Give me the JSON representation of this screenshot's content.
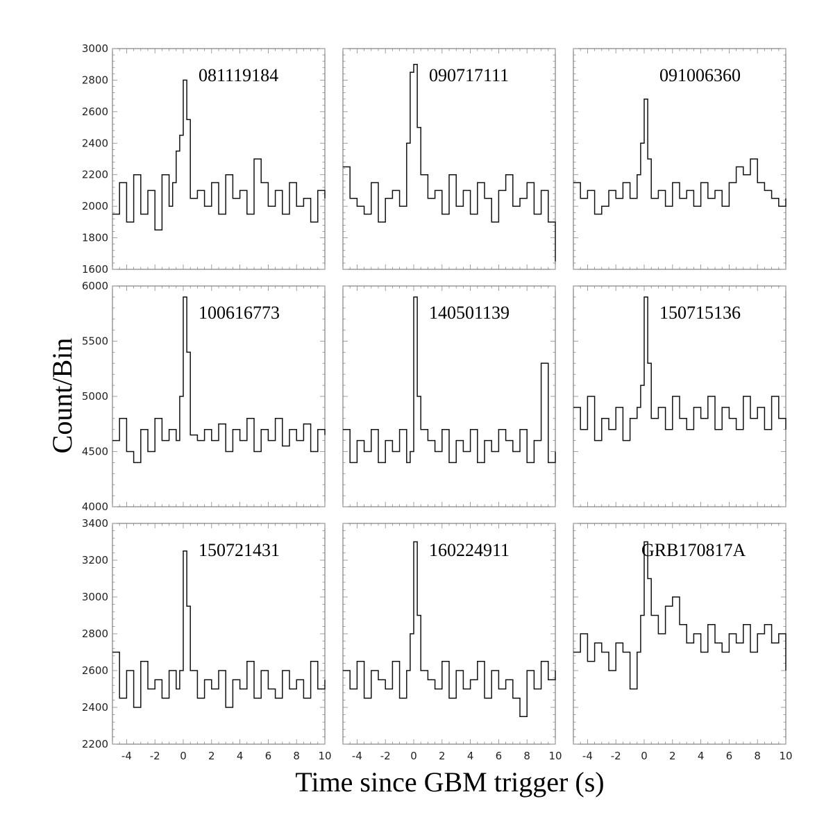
{
  "figure": {
    "xlabel": "Time since GBM trigger (s)",
    "ylabel": "Count/Bin"
  },
  "chart_data": [
    {
      "type": "line",
      "title": "081119184",
      "xlim": [
        -5,
        10
      ],
      "ylim": [
        1600,
        3000
      ],
      "yticks": [
        1600,
        1800,
        2000,
        2200,
        2400,
        2600,
        2800,
        3000
      ],
      "xticks": [],
      "series": [
        {
          "x": [
            -5,
            -4.5,
            -4,
            -3.5,
            -3,
            -2.5,
            -2,
            -1.5,
            -1,
            -0.75,
            -0.5,
            -0.25,
            0,
            0.25,
            0.5,
            1,
            1.5,
            2,
            2.5,
            3,
            3.5,
            4,
            4.5,
            5,
            5.5,
            6,
            6.5,
            7,
            7.5,
            8,
            8.5,
            9,
            9.5,
            10
          ],
          "y": [
            1950,
            2150,
            1900,
            2200,
            1950,
            2100,
            1850,
            2200,
            2000,
            2150,
            2350,
            2450,
            2800,
            2550,
            2050,
            2100,
            2000,
            2150,
            1950,
            2200,
            2050,
            2100,
            1950,
            2300,
            2150,
            2000,
            2100,
            1950,
            2150,
            2000,
            2050,
            1900,
            2100,
            2050
          ]
        }
      ]
    },
    {
      "type": "line",
      "title": "090717111",
      "xlim": [
        -5,
        10
      ],
      "ylim": [
        1600,
        3000
      ],
      "yticks": [],
      "xticks": [],
      "series": [
        {
          "x": [
            -5,
            -4.5,
            -4,
            -3.5,
            -3,
            -2.5,
            -2,
            -1.5,
            -1,
            -0.5,
            -0.25,
            0,
            0.25,
            0.5,
            1,
            1.5,
            2,
            2.5,
            3,
            3.5,
            4,
            4.5,
            5,
            5.5,
            6,
            6.5,
            7,
            7.5,
            8,
            8.5,
            9,
            9.5,
            10
          ],
          "y": [
            2250,
            2050,
            2000,
            1950,
            2150,
            1900,
            2050,
            2100,
            2000,
            2400,
            2850,
            2900,
            2500,
            2200,
            2050,
            2100,
            1950,
            2200,
            2000,
            2100,
            1950,
            2150,
            2050,
            1900,
            2100,
            2200,
            2000,
            2050,
            2150,
            1950,
            2100,
            1900,
            1650
          ]
        }
      ]
    },
    {
      "type": "line",
      "title": "091006360",
      "xlim": [
        -5,
        10
      ],
      "ylim": [
        1600,
        3000
      ],
      "yticks": [],
      "xticks": [],
      "series": [
        {
          "x": [
            -5,
            -4.5,
            -4,
            -3.5,
            -3,
            -2.5,
            -2,
            -1.5,
            -1,
            -0.5,
            -0.25,
            0,
            0.25,
            0.5,
            1,
            1.5,
            2,
            2.5,
            3,
            3.5,
            4,
            4.5,
            5,
            5.5,
            6,
            6.5,
            7,
            7.5,
            8,
            8.5,
            9,
            9.5,
            10
          ],
          "y": [
            2150,
            2050,
            2100,
            1950,
            2000,
            2100,
            2050,
            2150,
            2050,
            2200,
            2400,
            2680,
            2300,
            2050,
            2100,
            2000,
            2150,
            2050,
            2100,
            2000,
            2150,
            2050,
            2100,
            2000,
            2150,
            2250,
            2200,
            2300,
            2150,
            2100,
            2050,
            2000,
            2050
          ]
        }
      ]
    },
    {
      "type": "line",
      "title": "100616773",
      "xlim": [
        -5,
        10
      ],
      "ylim": [
        4000,
        6000
      ],
      "yticks": [
        4000,
        4500,
        5000,
        5500,
        6000
      ],
      "xticks": [],
      "series": [
        {
          "x": [
            -5,
            -4.5,
            -4,
            -3.5,
            -3,
            -2.5,
            -2,
            -1.5,
            -1,
            -0.5,
            -0.25,
            0,
            0.25,
            0.5,
            1,
            1.5,
            2,
            2.5,
            3,
            3.5,
            4,
            4.5,
            5,
            5.5,
            6,
            6.5,
            7,
            7.5,
            8,
            8.5,
            9,
            9.5,
            10
          ],
          "y": [
            4600,
            4800,
            4500,
            4400,
            4700,
            4500,
            4800,
            4600,
            4700,
            4600,
            5000,
            5900,
            5400,
            4650,
            4600,
            4700,
            4600,
            4750,
            4500,
            4700,
            4600,
            4800,
            4500,
            4700,
            4600,
            4800,
            4550,
            4700,
            4600,
            4750,
            4500,
            4700,
            4650
          ]
        }
      ]
    },
    {
      "type": "line",
      "title": "140501139",
      "xlim": [
        -5,
        10
      ],
      "ylim": [
        4000,
        6000
      ],
      "yticks": [],
      "xticks": [],
      "series": [
        {
          "x": [
            -5,
            -4.5,
            -4,
            -3.5,
            -3,
            -2.5,
            -2,
            -1.5,
            -1,
            -0.5,
            -0.25,
            0,
            0.25,
            0.5,
            1,
            1.5,
            2,
            2.5,
            3,
            3.5,
            4,
            4.5,
            5,
            5.5,
            6,
            6.5,
            7,
            7.5,
            8,
            8.5,
            9,
            9.5,
            10
          ],
          "y": [
            4700,
            4400,
            4600,
            4500,
            4700,
            4400,
            4600,
            4500,
            4700,
            4400,
            4500,
            5900,
            5000,
            4700,
            4600,
            4500,
            4700,
            4400,
            4600,
            4500,
            4700,
            4400,
            4600,
            4500,
            4700,
            4600,
            4500,
            4700,
            4400,
            4600,
            5300,
            4400,
            4500
          ]
        }
      ]
    },
    {
      "type": "line",
      "title": "150715136",
      "xlim": [
        -5,
        10
      ],
      "ylim": [
        4000,
        6000
      ],
      "yticks": [],
      "xticks": [],
      "series": [
        {
          "x": [
            -5,
            -4.5,
            -4,
            -3.5,
            -3,
            -2.5,
            -2,
            -1.5,
            -1,
            -0.5,
            -0.25,
            0,
            0.25,
            0.5,
            1,
            1.5,
            2,
            2.5,
            3,
            3.5,
            4,
            4.5,
            5,
            5.5,
            6,
            6.5,
            7,
            7.5,
            8,
            8.5,
            9,
            9.5,
            10
          ],
          "y": [
            4900,
            4700,
            5000,
            4600,
            4800,
            4700,
            4900,
            4600,
            4800,
            4900,
            5100,
            5900,
            5300,
            4800,
            4900,
            4700,
            5000,
            4800,
            4700,
            4900,
            4800,
            5000,
            4700,
            4900,
            4800,
            4700,
            5000,
            4800,
            4900,
            4700,
            5000,
            4800,
            4700
          ]
        }
      ]
    },
    {
      "type": "line",
      "title": "150721431",
      "xlim": [
        -5,
        10
      ],
      "ylim": [
        2200,
        3400
      ],
      "yticks": [
        2200,
        2400,
        2600,
        2800,
        3000,
        3200,
        3400
      ],
      "xticks": [
        -4,
        -2,
        0,
        2,
        4,
        6,
        8,
        10
      ],
      "series": [
        {
          "x": [
            -5,
            -4.5,
            -4,
            -3.5,
            -3,
            -2.5,
            -2,
            -1.5,
            -1,
            -0.5,
            -0.25,
            0,
            0.25,
            0.5,
            1,
            1.5,
            2,
            2.5,
            3,
            3.5,
            4,
            4.5,
            5,
            5.5,
            6,
            6.5,
            7,
            7.5,
            8,
            8.5,
            9,
            9.5,
            10
          ],
          "y": [
            2700,
            2450,
            2600,
            2400,
            2650,
            2500,
            2550,
            2450,
            2600,
            2500,
            2600,
            3250,
            2950,
            2600,
            2450,
            2550,
            2500,
            2600,
            2400,
            2550,
            2500,
            2650,
            2450,
            2600,
            2500,
            2450,
            2600,
            2500,
            2550,
            2450,
            2650,
            2500,
            2550
          ]
        }
      ]
    },
    {
      "type": "line",
      "title": "160224911",
      "xlim": [
        -5,
        10
      ],
      "ylim": [
        2200,
        3400
      ],
      "yticks": [],
      "xticks": [
        -4,
        -2,
        0,
        2,
        4,
        6,
        8,
        10
      ],
      "series": [
        {
          "x": [
            -5,
            -4.5,
            -4,
            -3.5,
            -3,
            -2.5,
            -2,
            -1.5,
            -1,
            -0.5,
            -0.25,
            0,
            0.25,
            0.5,
            1,
            1.5,
            2,
            2.5,
            3,
            3.5,
            4,
            4.5,
            5,
            5.5,
            6,
            6.5,
            7,
            7.5,
            8,
            8.5,
            9,
            9.5,
            10
          ],
          "y": [
            2600,
            2500,
            2650,
            2450,
            2600,
            2550,
            2500,
            2650,
            2450,
            2600,
            2800,
            3300,
            2900,
            2600,
            2550,
            2500,
            2650,
            2450,
            2600,
            2500,
            2550,
            2650,
            2450,
            2600,
            2500,
            2550,
            2450,
            2350,
            2600,
            2500,
            2650,
            2550,
            2600
          ]
        }
      ]
    },
    {
      "type": "line",
      "title": "GRB170817A",
      "xlim": [
        -5,
        10
      ],
      "ylim": [
        2200,
        3400
      ],
      "yticks": [],
      "xticks": [
        -4,
        -2,
        0,
        2,
        4,
        6,
        8,
        10
      ],
      "series": [
        {
          "x": [
            -5,
            -4.5,
            -4,
            -3.5,
            -3,
            -2.5,
            -2,
            -1.5,
            -1,
            -0.5,
            -0.25,
            0,
            0.25,
            0.5,
            1,
            1.5,
            2,
            2.5,
            3,
            3.5,
            4,
            4.5,
            5,
            5.5,
            6,
            6.5,
            7,
            7.5,
            8,
            8.5,
            9,
            9.5,
            10
          ],
          "y": [
            2700,
            2800,
            2650,
            2750,
            2700,
            2600,
            2750,
            2700,
            2500,
            2700,
            2900,
            3300,
            3100,
            2900,
            2800,
            2950,
            3000,
            2850,
            2750,
            2800,
            2700,
            2850,
            2750,
            2700,
            2800,
            2750,
            2850,
            2700,
            2800,
            2850,
            2750,
            2800,
            2600
          ]
        }
      ]
    }
  ]
}
